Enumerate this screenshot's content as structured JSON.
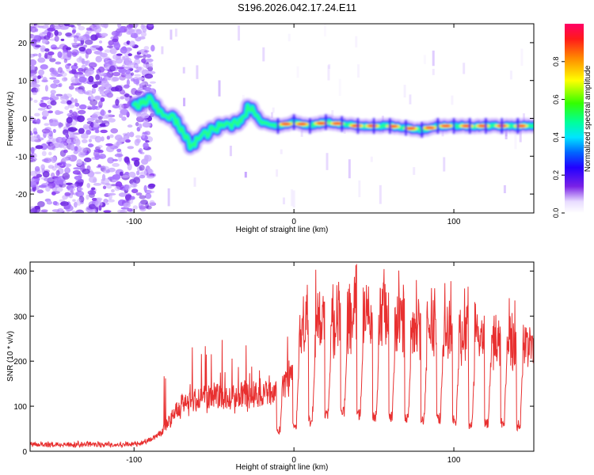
{
  "title": "S196.2026.042.17.24.E11",
  "colors": {
    "snr_line": "#e83030",
    "axis": "#000000"
  },
  "chart_data": [
    {
      "type": "heatmap",
      "name": "spectrogram",
      "xlabel": "Height of straight line (km)",
      "ylabel": "Frequency (Hz)",
      "xlim": [
        -165,
        150
      ],
      "ylim": [
        -25,
        25
      ],
      "x_ticks": [
        -100,
        0,
        100
      ],
      "y_ticks": [
        -20,
        -10,
        0,
        10,
        20
      ],
      "grid": false,
      "ridge": {
        "description_points_x": [
          -100,
          -90,
          -85,
          -75,
          -65,
          -55,
          -45,
          -35,
          -28,
          -20,
          -10,
          0,
          10,
          20,
          40,
          60,
          80,
          90,
          100,
          120,
          140,
          150
        ],
        "description_points_y": [
          3,
          5,
          2,
          0,
          -7,
          -4,
          -2,
          -1,
          3,
          -1,
          -2,
          -1,
          -2,
          -1,
          -2,
          -2,
          -3,
          -2,
          -2,
          -2,
          -2,
          -2
        ]
      },
      "colorbar": {
        "label": "Normalized spectral amplitude",
        "range": [
          0.0,
          1.0
        ],
        "ticks": [
          0.0,
          0.2,
          0.4,
          0.6,
          0.8
        ],
        "tick_labels": [
          "0.0",
          "0.2",
          "0.4",
          "0.6",
          "0.8"
        ]
      }
    },
    {
      "type": "line",
      "name": "snr",
      "xlabel": "Height of straight line (km)",
      "ylabel": "SNR (10 * v/v)",
      "xlim": [
        -165,
        150
      ],
      "ylim": [
        0,
        420
      ],
      "x_ticks": [
        -100,
        0,
        100
      ],
      "y_ticks": [
        0,
        100,
        200,
        300,
        400
      ],
      "grid": false,
      "series": [
        {
          "name": "SNR",
          "envelope_x": [
            -165,
            -100,
            -90,
            -85,
            -80,
            -70,
            -60,
            -50,
            -40,
            -30,
            -20,
            -10,
            -5,
            0,
            5,
            10,
            20,
            30,
            40,
            50,
            60,
            70,
            80,
            90,
            100,
            110,
            120,
            130,
            140,
            150
          ],
          "envelope_y": [
            20,
            20,
            30,
            40,
            70,
            120,
            140,
            150,
            140,
            150,
            160,
            170,
            190,
            240,
            320,
            340,
            350,
            360,
            365,
            360,
            350,
            345,
            340,
            330,
            320,
            310,
            300,
            295,
            290,
            285
          ],
          "dip_x": [
            -10,
            0,
            10,
            20,
            30,
            40,
            50,
            60,
            70,
            80,
            90,
            100,
            110,
            120,
            130,
            140
          ],
          "dip_y": [
            45,
            55,
            65,
            80,
            85,
            80,
            75,
            75,
            70,
            70,
            70,
            65,
            60,
            60,
            60,
            55
          ]
        }
      ]
    }
  ]
}
